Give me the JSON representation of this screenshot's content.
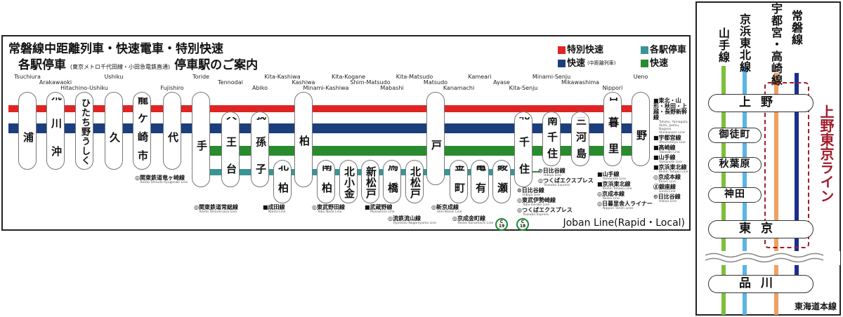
{
  "title": {
    "line1": "常磐線中距離列車・快速電車・特別快速",
    "line2_main": "各駅停車",
    "line2_sub": "(東京メトロ千代田線・小田急電鉄直通)",
    "line2_end": "停車駅のご案内"
  },
  "legend": [
    {
      "label": "特別快速",
      "sub": "",
      "color": "#e02424"
    },
    {
      "label": "各駅停車",
      "sub": "",
      "color": "#3a9494"
    },
    {
      "label": "快速",
      "sub": "(中距離列車)",
      "color": "#1b3f7c"
    },
    {
      "label": "快速",
      "sub": "",
      "color": "#2a8a2e"
    }
  ],
  "services": {
    "special_rapid": {
      "color": "#e02424"
    },
    "rapid_midrange": {
      "color": "#1b3f7c"
    },
    "rapid": {
      "color": "#2a8a2e"
    },
    "local": {
      "color": "#3a9494"
    }
  },
  "stations": [
    {
      "name": "土浦",
      "en": "Tsuchiura",
      "services": [
        "special_rapid",
        "rapid_midrange"
      ]
    },
    {
      "name": "荒川沖",
      "en": "Arakawaoki",
      "services": [
        "special_rapid",
        "rapid_midrange"
      ]
    },
    {
      "name": "ひたち野うしく",
      "en": "Hitachino-Ushiku",
      "services": [
        "special_rapid",
        "rapid_midrange"
      ]
    },
    {
      "name": "牛久",
      "en": "Ushiku",
      "services": [
        "special_rapid",
        "rapid_midrange"
      ]
    },
    {
      "name": "龍ケ崎市",
      "en": "",
      "services": [
        "special_rapid",
        "rapid_midrange"
      ]
    },
    {
      "name": "藤代",
      "en": "Fujishiro",
      "services": [
        "special_rapid",
        "rapid_midrange"
      ]
    },
    {
      "name": "取手",
      "en": "Toride",
      "services": [
        "special_rapid",
        "rapid_midrange",
        "rapid",
        "local"
      ]
    },
    {
      "name": "天王台",
      "en": "Tennodai",
      "services": [
        "rapid_midrange",
        "rapid",
        "local"
      ]
    },
    {
      "name": "我孫子",
      "en": "Abiko",
      "services": [
        "rapid_midrange",
        "rapid",
        "local"
      ]
    },
    {
      "name": "北柏",
      "en": "Kita-Kashiwa",
      "services": [
        "local"
      ]
    },
    {
      "name": "柏",
      "en": "Kashiwa",
      "services": [
        "special_rapid",
        "rapid_midrange",
        "rapid",
        "local"
      ]
    },
    {
      "name": "南柏",
      "en": "Minami-Kashiwa",
      "services": [
        "local"
      ]
    },
    {
      "name": "北小金",
      "en": "Kita-Kogane",
      "services": [
        "local"
      ]
    },
    {
      "name": "新松戸",
      "en": "Shim-Matsudo",
      "services": [
        "local"
      ]
    },
    {
      "name": "馬橋",
      "en": "Mabashi",
      "services": [
        "local"
      ]
    },
    {
      "name": "北松戸",
      "en": "Kita-Matsudo",
      "services": [
        "local"
      ]
    },
    {
      "name": "松戸",
      "en": "Matsudo",
      "services": [
        "special_rapid",
        "rapid_midrange",
        "rapid",
        "local"
      ]
    },
    {
      "name": "金町",
      "en": "Kanamachi",
      "services": [
        "local"
      ]
    },
    {
      "name": "亀有",
      "en": "Kameari",
      "services": [
        "local"
      ]
    },
    {
      "name": "綾瀬",
      "en": "Ayase",
      "services": [
        "local"
      ]
    },
    {
      "name": "北千住",
      "en": "Kita-Senju",
      "services": [
        "rapid_midrange",
        "rapid",
        "local"
      ]
    },
    {
      "name": "南千住",
      "en": "Minami-Senju",
      "services": [
        "rapid_midrange",
        "rapid"
      ]
    },
    {
      "name": "三河島",
      "en": "Mikawashima",
      "services": [
        "rapid_midrange",
        "rapid"
      ]
    },
    {
      "name": "日暮里",
      "en": "Nippori",
      "services": [
        "special_rapid",
        "rapid_midrange",
        "rapid"
      ]
    },
    {
      "name": "上野",
      "en": "Ueno",
      "services": [
        "special_rapid",
        "rapid_midrange",
        "rapid"
      ]
    }
  ],
  "transfers": [
    {
      "station": "龍ケ崎市",
      "items": [
        {
          "jp": "◎関東鉄道竜ヶ崎線",
          "en": "Kanto Tetsudo Ryugasaki Line"
        }
      ]
    },
    {
      "station": "取手",
      "items": [
        {
          "jp": "◎関東鉄道常総線",
          "en": "Kanto Tetsudo Joso Line"
        }
      ]
    },
    {
      "station": "我孫子",
      "items": [
        {
          "jp": "■成田線",
          "en": "Narita Line"
        }
      ]
    },
    {
      "station": "柏",
      "items": [
        {
          "jp": "◎東武野田線",
          "en": "Tobu Noda Line"
        }
      ]
    },
    {
      "station": "馬橋-1",
      "items": [
        {
          "jp": "■武蔵野線",
          "en": "Musashino Line"
        }
      ]
    },
    {
      "station": "馬橋-2",
      "items": [
        {
          "jp": "◎流鉄流山線",
          "en": "Ryutetsu Nagareyama Line"
        }
      ]
    },
    {
      "station": "松戸",
      "items": [
        {
          "jp": "◎新京成線",
          "en": "Shin-Keisei Line"
        }
      ]
    },
    {
      "station": "金町",
      "items": [
        {
          "jp": "◎京成金町線",
          "en": "Keisei Kanamachi Line"
        }
      ]
    },
    {
      "station": "北千住-right",
      "items": [
        {
          "jp": "⊙日比谷線",
          "en": "Hibiya Line"
        },
        {
          "jp": "◎つくばエクスプレス",
          "en": "Tsukuba Express"
        }
      ]
    },
    {
      "station": "北千住-below",
      "items": [
        {
          "jp": "⊙日比谷線",
          "en": "Hibiya Line"
        },
        {
          "jp": "◎東武伊勢崎線",
          "en": "Tobu Isesaki Line"
        },
        {
          "jp": "◎つくばエクスプレス",
          "en": "Tsukuba Express"
        }
      ]
    },
    {
      "station": "日暮里",
      "items": [
        {
          "jp": "■山手線",
          "en": "Yamanote Line"
        },
        {
          "jp": "■京浜東北線",
          "en": "Keihin Tohoku Line"
        },
        {
          "jp": "◎京成本線",
          "en": "Keisei Line"
        },
        {
          "jp": "◎日暮里舎人ライナー",
          "en": "Nippori Toneri Liner"
        }
      ]
    },
    {
      "station": "上野",
      "items": [
        {
          "jp": "■東北・山形・秋田・上越・長野新幹線",
          "en": "Tohoku, Yamagata, Akita, Joetsu, Nagano Shinkansen Line"
        },
        {
          "jp": "■宇都宮線",
          "en": "Utsunomiya Line"
        },
        {
          "jp": "■高崎線",
          "en": "Takasaki Line"
        },
        {
          "jp": "■山手線",
          "en": "Yamanote Line"
        },
        {
          "jp": "■京浜東北線",
          "en": "Keihin Tohoku Line"
        },
        {
          "jp": "◎京成本線",
          "en": "Keisei Line"
        },
        {
          "jp": "ⓖ銀座線",
          "en": "Ginza Line"
        },
        {
          "jp": "⊙日比谷線",
          "en": "Hibiya Line"
        }
      ]
    }
  ],
  "chiyoda_badges": [
    {
      "station": "綾瀬",
      "letter": "C",
      "number": "19"
    },
    {
      "station": "北千住",
      "letter": "C",
      "number": "18"
    }
  ],
  "footer": "Joban Line(Rapid・Local)",
  "right_panel": {
    "lines": [
      {
        "name": "山手線",
        "color": "#7cbf3a"
      },
      {
        "name": "京浜東北線",
        "color": "#5ab4e6"
      },
      {
        "name": "宇都宮・高崎線",
        "color": "#f0a060"
      },
      {
        "name": "常磐線",
        "color": "#1b2f8a"
      }
    ],
    "stations": [
      "上野",
      "御徒町",
      "秋葉原",
      "神田",
      "東京",
      "品川"
    ],
    "ueno_tokyo_line": "上野東京ライン",
    "ueno_tokyo_color": "#a01c2c",
    "tokaido": "東海道本線"
  }
}
